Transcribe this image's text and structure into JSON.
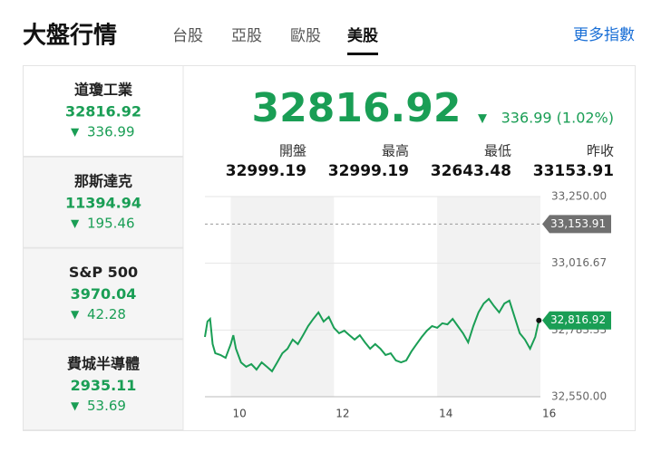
{
  "header": {
    "title": "大盤行情",
    "tabs": [
      "台股",
      "亞股",
      "歐股",
      "美股"
    ],
    "active_tab": 3,
    "more": "更多指數"
  },
  "indices": [
    {
      "name": "道瓊工業",
      "value": "32816.92",
      "change": "336.99"
    },
    {
      "name": "那斯達克",
      "value": "11394.94",
      "change": "195.46"
    },
    {
      "name": "S&P 500",
      "value": "3970.04",
      "change": "42.28"
    },
    {
      "name": "費城半導體",
      "value": "2935.11",
      "change": "53.69"
    }
  ],
  "quote": {
    "value": "32816.92",
    "change": "336.99 (1.02%)",
    "stats": [
      {
        "label": "開盤",
        "value": "32999.19"
      },
      {
        "label": "最高",
        "value": "32999.19"
      },
      {
        "label": "最低",
        "value": "32643.48"
      },
      {
        "label": "昨收",
        "value": "33153.91"
      }
    ]
  },
  "chart": {
    "type": "line",
    "color": "#1a9e55",
    "x": [
      9.5,
      9.55,
      9.6,
      9.65,
      9.7,
      9.8,
      9.9,
      10.0,
      10.05,
      10.1,
      10.2,
      10.3,
      10.4,
      10.5,
      10.6,
      10.7,
      10.8,
      10.9,
      11.0,
      11.1,
      11.2,
      11.3,
      11.4,
      11.5,
      11.6,
      11.7,
      11.8,
      11.9,
      12.0,
      12.1,
      12.2,
      12.3,
      12.4,
      12.5,
      12.6,
      12.7,
      12.8,
      12.9,
      13.0,
      13.1,
      13.2,
      13.3,
      13.4,
      13.5,
      13.6,
      13.7,
      13.8,
      13.9,
      14.0,
      14.1,
      14.2,
      14.3,
      14.4,
      14.5,
      14.6,
      14.7,
      14.8,
      14.9,
      15.0,
      15.1,
      15.2,
      15.3,
      15.4,
      15.5,
      15.6,
      15.7,
      15.8,
      15.9,
      15.97
    ],
    "values": [
      32759,
      32813,
      32822,
      32734,
      32702,
      32696,
      32686,
      32734,
      32765,
      32718,
      32670,
      32655,
      32664,
      32645,
      32670,
      32655,
      32639,
      32670,
      32702,
      32718,
      32750,
      32734,
      32765,
      32797,
      32822,
      32845,
      32813,
      32829,
      32791,
      32772,
      32781,
      32765,
      32750,
      32765,
      32740,
      32718,
      32734,
      32718,
      32696,
      32702,
      32677,
      32670,
      32677,
      32708,
      32734,
      32759,
      32781,
      32797,
      32791,
      32807,
      32803,
      32822,
      32797,
      32772,
      32740,
      32797,
      32845,
      32876,
      32892,
      32867,
      32845,
      32876,
      32886,
      32829,
      32772,
      32750,
      32718,
      32759,
      32816.92
    ],
    "xlim": [
      9.5,
      16
    ],
    "xticks": [
      10,
      12,
      14,
      16
    ],
    "ylim": [
      32550,
      33250
    ],
    "yticks": [
      {
        "value": 32550,
        "label": "32,550.00"
      },
      {
        "value": 32783.33,
        "label": "32,783.33"
      },
      {
        "value": 33016.67,
        "label": "33,016.67"
      },
      {
        "value": 33250,
        "label": "33,250.00"
      }
    ],
    "shaded_bands": [
      [
        10,
        12
      ],
      [
        14,
        16
      ]
    ],
    "reference": {
      "value": 33153.91,
      "label": "33,153.91"
    },
    "last": {
      "value": 32816.92,
      "label": "32,816.92"
    }
  }
}
